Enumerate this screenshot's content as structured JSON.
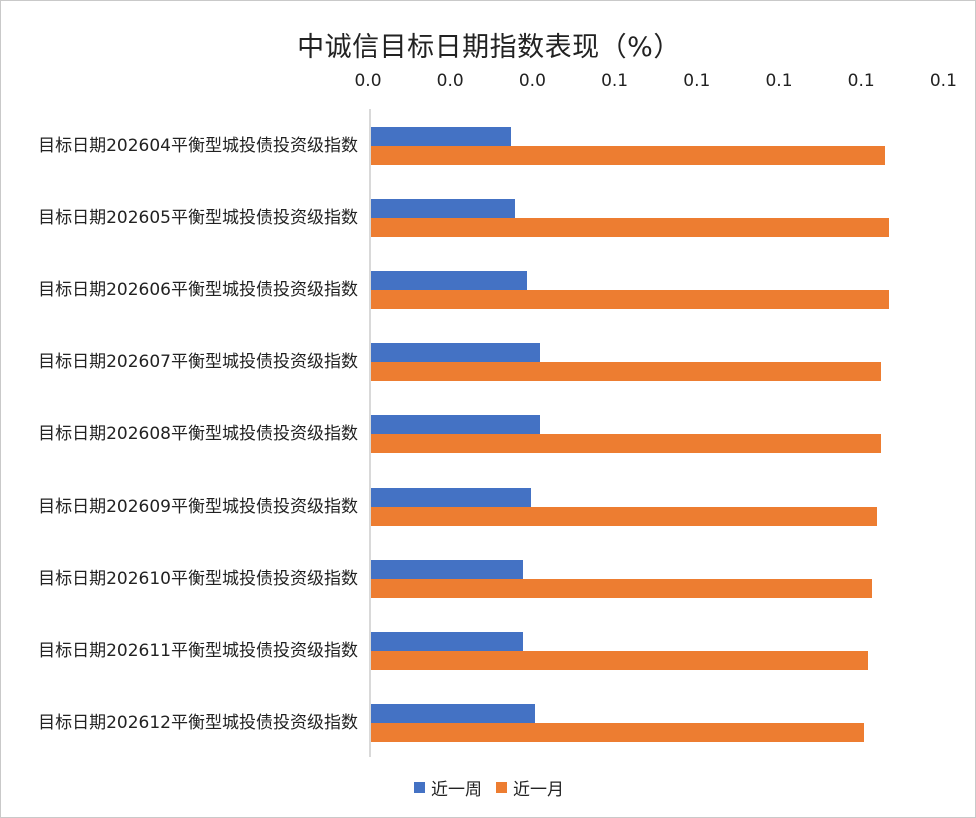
{
  "chart_data": {
    "type": "bar",
    "orientation": "horizontal",
    "title": "中诚信目标日期指数表现（%）",
    "xlabel": "",
    "ylabel": "",
    "xlim": [
      0,
      0.14
    ],
    "x_tick_step": 0.02,
    "x_tick_labels": [
      "0.0",
      "0.0",
      "0.0",
      "0.1",
      "0.1",
      "0.1",
      "0.1",
      "0.1"
    ],
    "x_axis_position": "top",
    "grid": false,
    "legend_position": "bottom",
    "categories": [
      "目标日期202604平衡型城投债投资级指数",
      "目标日期202605平衡型城投债投资级指数",
      "目标日期202606平衡型城投债投资级指数",
      "目标日期202607平衡型城投债投资级指数",
      "目标日期202608平衡型城投债投资级指数",
      "目标日期202609平衡型城投债投资级指数",
      "目标日期202610平衡型城投债投资级指数",
      "目标日期202611平衡型城投债投资级指数",
      "目标日期202612平衡型城投债投资级指数"
    ],
    "series": [
      {
        "name": "近一周",
        "color": "#4472c4",
        "values": [
          0.034,
          0.035,
          0.038,
          0.041,
          0.041,
          0.039,
          0.037,
          0.037,
          0.04
        ]
      },
      {
        "name": "近一月",
        "color": "#ed7d31",
        "values": [
          0.125,
          0.126,
          0.126,
          0.124,
          0.124,
          0.123,
          0.122,
          0.121,
          0.12
        ]
      }
    ]
  },
  "legend": {
    "items": [
      {
        "label": "近一周",
        "color": "#4472c4"
      },
      {
        "label": "近一月",
        "color": "#ed7d31"
      }
    ]
  }
}
